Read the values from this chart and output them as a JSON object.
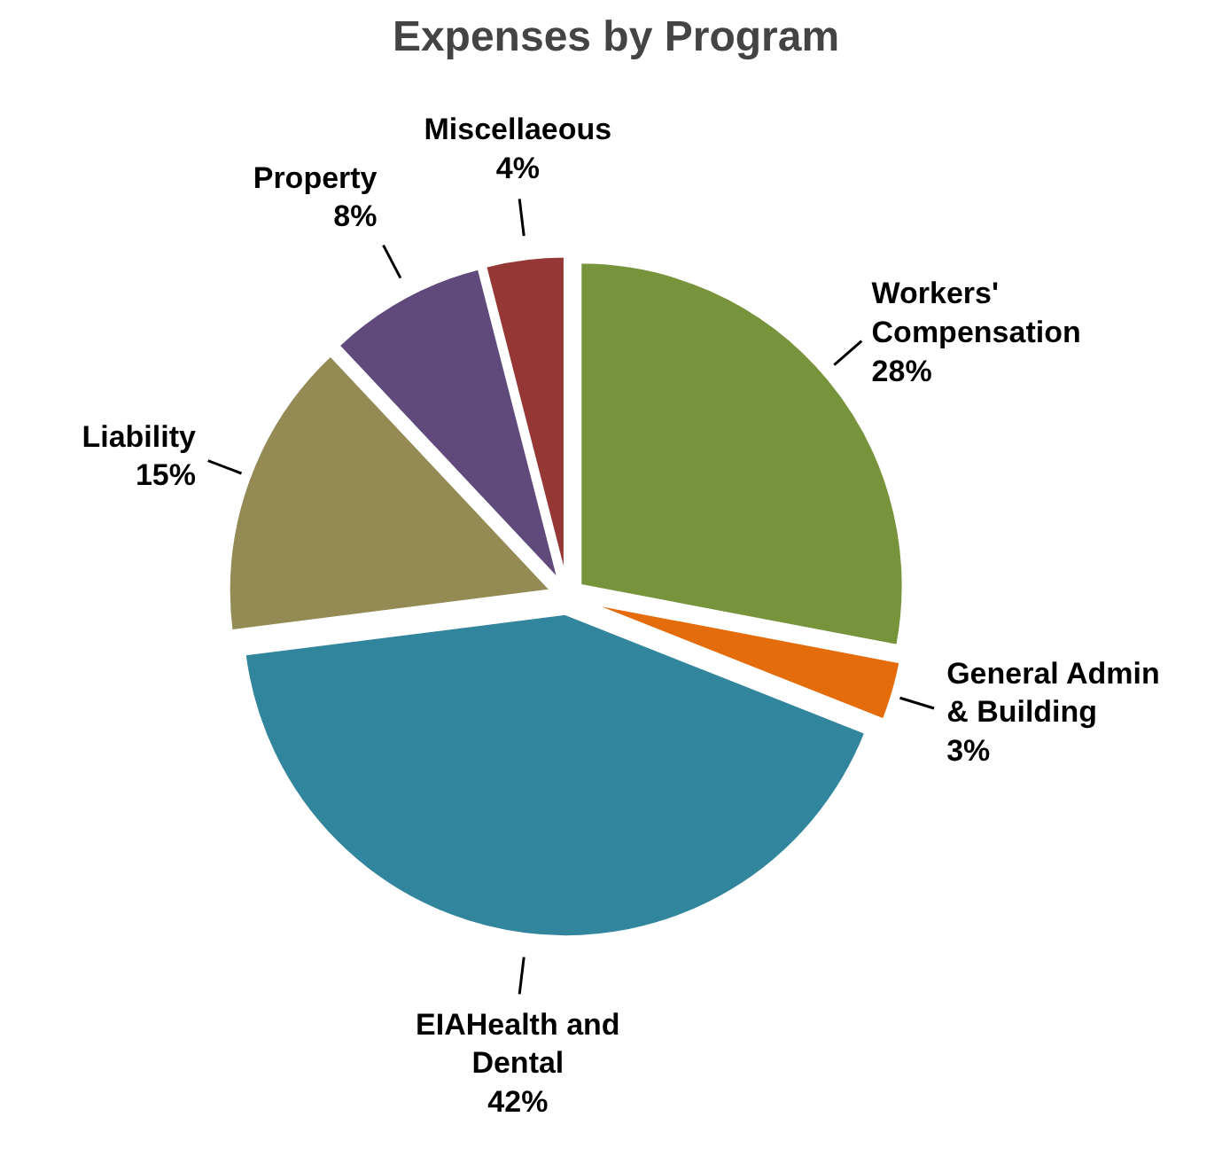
{
  "chart_data": {
    "type": "pie",
    "title": "Expenses by Program",
    "categories": [
      "Workers' Compensation",
      "General Admin & Building",
      "EIAHealth and Dental",
      "Liability",
      "Property",
      "Miscellaeous"
    ],
    "values": [
      28,
      3,
      42,
      15,
      8,
      4
    ],
    "colors": [
      "#77933c",
      "#e46c0a",
      "#31859c",
      "#948a54",
      "#604a7b",
      "#953735"
    ],
    "value_labels": [
      "28%",
      "3%",
      "42%",
      "15%",
      "8%",
      "4%"
    ]
  }
}
